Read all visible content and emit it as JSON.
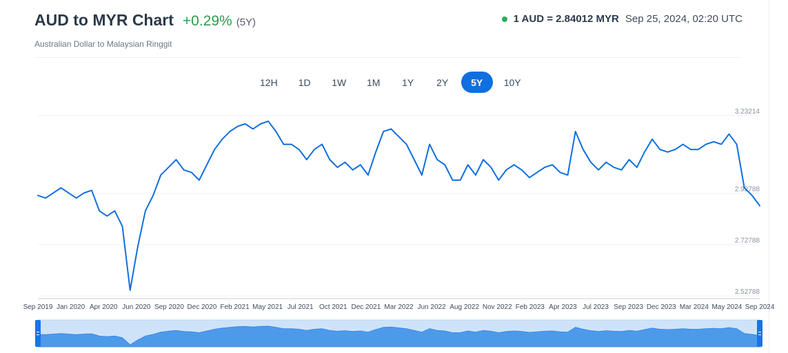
{
  "header": {
    "title": "AUD to MYR Chart",
    "change": "+0.29%",
    "period": "(5Y)",
    "subtitle": "Australian Dollar to Malaysian Ringgit",
    "rate": "1 AUD = 2.84012 MYR",
    "timestamp": "Sep 25, 2024, 02:20 UTC",
    "live_color": "#27b05a"
  },
  "ranges": {
    "items": [
      "12H",
      "1D",
      "1W",
      "1M",
      "1Y",
      "2Y",
      "5Y",
      "10Y"
    ],
    "selected": "5Y"
  },
  "colors": {
    "line": "#0f6fde",
    "navigator_fill": "#4d9aeb",
    "navigator_bg": "#cfe3f8",
    "handle": "#1a73e8"
  },
  "chart_data": {
    "type": "line",
    "series": [
      {
        "values": [
          2.92,
          2.91,
          2.93,
          2.95,
          2.93,
          2.91,
          2.93,
          2.94,
          2.86,
          2.84,
          2.86,
          2.8,
          2.55,
          2.72,
          2.86,
          2.92,
          3.0,
          3.03,
          3.06,
          3.02,
          3.01,
          2.98,
          3.04,
          3.1,
          3.14,
          3.17,
          3.19,
          3.2,
          3.18,
          3.2,
          3.21,
          3.17,
          3.12,
          3.12,
          3.1,
          3.06,
          3.1,
          3.12,
          3.06,
          3.03,
          3.05,
          3.02,
          3.04,
          3.0,
          3.09,
          3.17,
          3.18,
          3.15,
          3.12,
          3.06,
          3.0,
          3.12,
          3.06,
          3.04,
          2.98,
          2.98,
          3.04,
          3.0,
          3.06,
          3.03,
          2.98,
          3.02,
          3.04,
          3.02,
          2.99,
          3.01,
          3.03,
          3.04,
          3.01,
          3.0,
          3.17,
          3.1,
          3.05,
          3.02,
          3.05,
          3.03,
          3.02,
          3.06,
          3.03,
          3.09,
          3.14,
          3.1,
          3.09,
          3.1,
          3.12,
          3.1,
          3.1,
          3.12,
          3.13,
          3.12,
          3.16,
          3.12,
          2.95,
          2.92,
          2.88
        ]
      }
    ],
    "x_ticks": [
      "Sep 2019",
      "Jan 2020",
      "Apr 2020",
      "Jun 2020",
      "Sep 2020",
      "Dec 2020",
      "Feb 2021",
      "May 2021",
      "Jul 2021",
      "Oct 2021",
      "Dec 2021",
      "Mar 2022",
      "Jun 2022",
      "Aug 2022",
      "Nov 2022",
      "Feb 2023",
      "Apr 2023",
      "Jul 2023",
      "Sep 2023",
      "Dec 2023",
      "Mar 2024",
      "May 2024",
      "Sep 2024"
    ],
    "y_ticks": [
      {
        "value": 3.23214,
        "label": "3.23214"
      },
      {
        "value": 2.92788,
        "label": "2.92788"
      },
      {
        "value": 2.72788,
        "label": "2.72788"
      },
      {
        "value": 2.52788,
        "label": "2.52788"
      }
    ],
    "ylim": [
      2.52788,
      3.23214
    ],
    "grid": true,
    "navigator": true
  }
}
